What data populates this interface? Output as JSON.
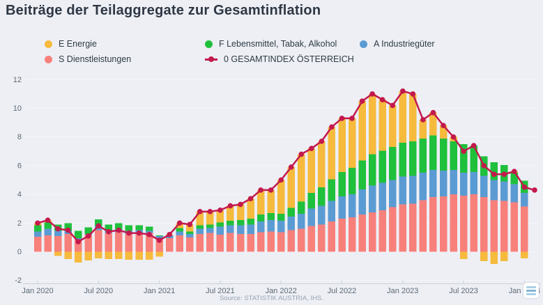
{
  "page": {
    "title": "Beiträge der Teilaggregate zur Gesamtinflation",
    "source": "Source: STATISTIK AUSTRIA, IHS."
  },
  "legend": [
    {
      "id": "E",
      "label": "E Energie",
      "color": "#f6ba3d",
      "marker": "circle"
    },
    {
      "id": "F",
      "label": "F Lebensmittel, Tabak, Alkohol",
      "color": "#1fc03c",
      "marker": "circle"
    },
    {
      "id": "A",
      "label": "A Industriegüter",
      "color": "#5b9bd3",
      "marker": "circle"
    },
    {
      "id": "S",
      "label": "S Dienstleistungen",
      "color": "#f8807b",
      "marker": "circle"
    },
    {
      "id": "0",
      "label": "0 GESAMTINDEX ÖSTERREICH",
      "color": "#c3194d",
      "marker": "line"
    }
  ],
  "export_menu": {
    "icon": "hamburger-icon"
  },
  "chart_data": {
    "type": "bar",
    "subtype": "stacked-column-with-line",
    "title": "Beiträge der Teilaggregate zur Gesamtinflation",
    "xlabel": "",
    "ylabel": "",
    "ylim": [
      -2,
      12
    ],
    "y_ticks": [
      -2,
      0,
      2,
      4,
      6,
      8,
      10,
      12
    ],
    "grid": true,
    "legend_position": "top",
    "categories": [
      "2020-01",
      "2020-02",
      "2020-03",
      "2020-04",
      "2020-05",
      "2020-06",
      "2020-07",
      "2020-08",
      "2020-09",
      "2020-10",
      "2020-11",
      "2020-12",
      "2021-01",
      "2021-02",
      "2021-03",
      "2021-04",
      "2021-05",
      "2021-06",
      "2021-07",
      "2021-08",
      "2021-09",
      "2021-10",
      "2021-11",
      "2021-12",
      "2022-01",
      "2022-02",
      "2022-03",
      "2022-04",
      "2022-05",
      "2022-06",
      "2022-07",
      "2022-08",
      "2022-09",
      "2022-10",
      "2022-11",
      "2022-12",
      "2023-01",
      "2023-02",
      "2023-03",
      "2023-04",
      "2023-05",
      "2023-06",
      "2023-07",
      "2023-08",
      "2023-09",
      "2023-10",
      "2023-11",
      "2023-12",
      "2024-01"
    ],
    "x_ticks": [
      {
        "index": 0,
        "label": "Jan 2020"
      },
      {
        "index": 6,
        "label": "Jul 2020"
      },
      {
        "index": 12,
        "label": "Jan 2021"
      },
      {
        "index": 18,
        "label": "Jul 2021"
      },
      {
        "index": 24,
        "label": "Jan 2022"
      },
      {
        "index": 30,
        "label": "Jul 2022"
      },
      {
        "index": 36,
        "label": "Jan 2023"
      },
      {
        "index": 42,
        "label": "Jul 2023"
      },
      {
        "index": 48,
        "label": "Jan 2024"
      }
    ],
    "series": [
      {
        "id": "S",
        "name": "S Dienstleistungen",
        "color": "#f8807b",
        "values": [
          1.05,
          1.15,
          1.1,
          1.25,
          0.85,
          1.2,
          1.5,
          1.3,
          1.35,
          1.25,
          1.3,
          1.3,
          0.9,
          0.95,
          1.15,
          1.0,
          1.25,
          1.3,
          1.2,
          1.3,
          1.25,
          1.25,
          1.35,
          1.4,
          1.35,
          1.5,
          1.6,
          1.8,
          1.9,
          2.1,
          2.3,
          2.4,
          2.6,
          2.75,
          2.9,
          3.1,
          3.3,
          3.35,
          3.6,
          3.8,
          3.85,
          4.0,
          3.9,
          4.0,
          3.8,
          3.6,
          3.55,
          3.45,
          3.15
        ]
      },
      {
        "id": "A",
        "name": "A Industriegüter",
        "color": "#5b9bd3",
        "values": [
          0.35,
          0.45,
          0.35,
          0.2,
          0.1,
          0.05,
          0.3,
          0.15,
          0.2,
          0.2,
          0.2,
          0.15,
          0.2,
          0.2,
          0.25,
          0.25,
          0.35,
          0.35,
          0.55,
          0.55,
          0.6,
          0.65,
          0.75,
          0.8,
          0.8,
          0.95,
          1.05,
          1.2,
          1.3,
          1.45,
          1.55,
          1.6,
          1.75,
          1.85,
          1.9,
          1.9,
          1.95,
          1.95,
          1.9,
          1.9,
          1.8,
          1.7,
          1.6,
          1.55,
          1.5,
          1.4,
          1.35,
          1.25,
          0.95
        ]
      },
      {
        "id": "F",
        "name": "F Lebensmittel, Tabak, Alkohol",
        "color": "#1fc03c",
        "values": [
          0.45,
          0.45,
          0.45,
          0.55,
          0.5,
          0.45,
          0.45,
          0.45,
          0.45,
          0.4,
          0.35,
          0.3,
          0.05,
          0.0,
          0.25,
          0.15,
          0.25,
          0.25,
          0.3,
          0.3,
          0.35,
          0.4,
          0.5,
          0.5,
          0.5,
          0.6,
          0.85,
          1.1,
          1.3,
          1.5,
          1.7,
          1.85,
          2.0,
          2.2,
          2.25,
          2.3,
          2.35,
          2.4,
          2.4,
          2.4,
          2.25,
          2.0,
          2.0,
          1.85,
          1.35,
          1.25,
          1.15,
          0.8,
          0.85
        ]
      },
      {
        "id": "E",
        "name": "E Energie",
        "color": "#f6ba3d",
        "values": [
          0.15,
          0.15,
          -0.3,
          -0.5,
          -0.75,
          -0.6,
          -0.45,
          -0.5,
          -0.5,
          -0.55,
          -0.55,
          -0.55,
          -0.35,
          0.05,
          0.35,
          0.5,
          0.95,
          0.9,
          0.85,
          1.05,
          1.1,
          1.4,
          1.7,
          1.6,
          2.35,
          2.85,
          3.3,
          3.1,
          3.2,
          3.65,
          3.75,
          3.45,
          4.15,
          4.2,
          3.55,
          2.9,
          3.6,
          3.3,
          1.3,
          1.6,
          0.9,
          0.3,
          -0.5,
          0.0,
          -0.65,
          -0.85,
          -0.65,
          0.1,
          -0.45
        ]
      }
    ],
    "line": {
      "name": "0 GESAMTINDEX ÖSTERREICH",
      "color": "#c3194d",
      "categories_extra": [
        "2024-02"
      ],
      "values": [
        2.0,
        2.2,
        1.6,
        1.5,
        0.7,
        1.1,
        1.8,
        1.4,
        1.5,
        1.3,
        1.3,
        1.2,
        0.8,
        1.2,
        2.0,
        1.9,
        2.8,
        2.8,
        2.9,
        3.2,
        3.3,
        3.7,
        4.3,
        4.3,
        5.0,
        5.9,
        6.8,
        7.2,
        7.7,
        8.7,
        9.3,
        9.3,
        10.5,
        11.0,
        10.6,
        10.2,
        11.2,
        11.0,
        9.2,
        9.7,
        8.8,
        8.0,
        7.0,
        7.4,
        6.0,
        5.4,
        5.4,
        5.6,
        4.5,
        4.3
      ]
    },
    "colors": {
      "background": "#edeff5",
      "gridline": "#f5f6fa",
      "axis_line": "#ccd2db",
      "tick_label": "#5d6874",
      "title": "#2e3744",
      "source": "#99a2ae"
    }
  }
}
